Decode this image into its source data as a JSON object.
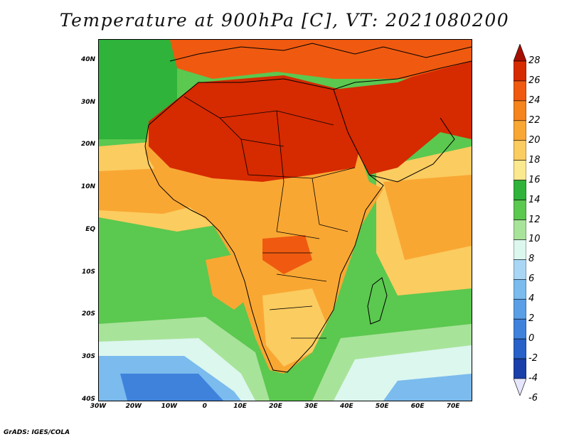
{
  "title": "Temperature at 900hPa [C], VT: 2021080200",
  "credit": "GrADS: IGES/COLA",
  "map": {
    "lat_labels": [
      "40N",
      "30N",
      "20N",
      "10N",
      "EQ",
      "10S",
      "20S",
      "30S",
      "40S"
    ],
    "lat_values": [
      40,
      30,
      20,
      10,
      0,
      -10,
      -20,
      -30,
      -40
    ],
    "lon_labels": [
      "30W",
      "20W",
      "10W",
      "0",
      "10E",
      "20E",
      "30E",
      "40E",
      "50E",
      "60E",
      "70E"
    ],
    "lon_values": [
      -30,
      -20,
      -10,
      0,
      10,
      20,
      30,
      40,
      50,
      60,
      70
    ],
    "lat_range": [
      -40,
      45
    ],
    "lon_range": [
      -30,
      75
    ]
  },
  "colorbar": {
    "labels": [
      "28",
      "26",
      "24",
      "22",
      "20",
      "18",
      "16",
      "14",
      "12",
      "10",
      "8",
      "6",
      "4",
      "2",
      "0",
      "-2",
      "-4",
      "-6"
    ],
    "colors": [
      "#a50f00",
      "#d62a00",
      "#ef5a10",
      "#f5841c",
      "#f9a733",
      "#fbcc60",
      "#fbe98f",
      "#2fb33a",
      "#5bc84f",
      "#a8e39a",
      "#dcf7ee",
      "#a9d6f4",
      "#7bbbee",
      "#5a9fe6",
      "#3f82dc",
      "#2861c7",
      "#1a3fa8",
      "#12207a"
    ]
  }
}
